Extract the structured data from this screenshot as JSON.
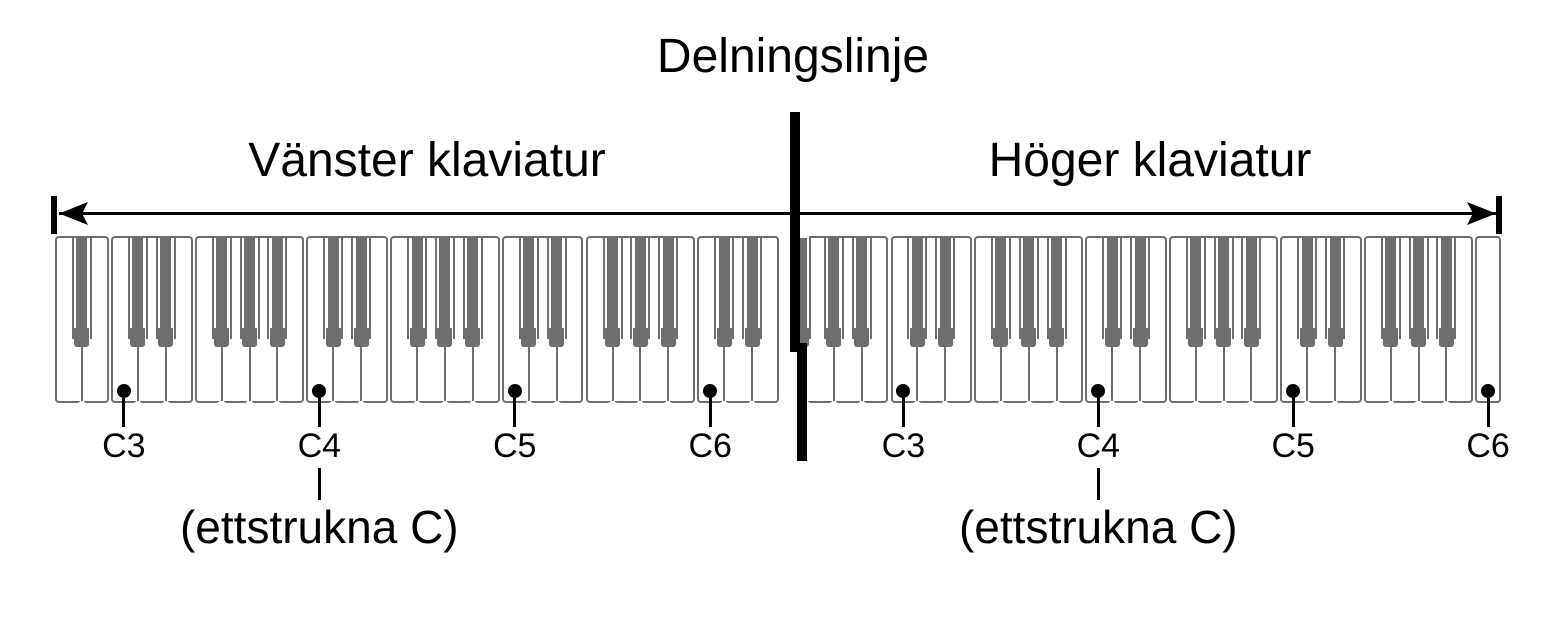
{
  "colors": {
    "ink": "#000000",
    "key_gray": "#6e6e6e",
    "background": "#ffffff"
  },
  "divider": {
    "label": "Delningslinje"
  },
  "keyboards": [
    {
      "label": "Vänster klaviatur",
      "white_keys": [
        "A2",
        "B2",
        "C3",
        "D3",
        "E3",
        "F3",
        "G3",
        "A3",
        "B3",
        "C4",
        "D4",
        "E4",
        "F4",
        "G4",
        "A4",
        "B4",
        "C5",
        "D5",
        "E5",
        "F5",
        "G5",
        "A5",
        "B5",
        "C6",
        "D6",
        "E6"
      ],
      "black_after_indices": [
        0,
        2,
        3,
        5,
        6,
        7,
        9,
        10,
        12,
        13,
        14,
        16,
        17,
        19,
        20,
        21,
        23,
        24
      ],
      "partial_black_at_start": false,
      "marks": [
        {
          "label": "C3",
          "white_index": 2
        },
        {
          "label": "C4",
          "white_index": 9
        },
        {
          "label": "C5",
          "white_index": 16
        },
        {
          "label": "C6",
          "white_index": 23
        }
      ],
      "callout": {
        "text": "(ettstrukna C)",
        "mark_label": "C4"
      }
    },
    {
      "label": "Höger klaviatur",
      "white_keys": [
        "G2",
        "A2",
        "B2",
        "C3",
        "D3",
        "E3",
        "F3",
        "G3",
        "A3",
        "B3",
        "C4",
        "D4",
        "E4",
        "F4",
        "G4",
        "A4",
        "B4",
        "C5",
        "D5",
        "E5",
        "F5",
        "G5",
        "A5",
        "B5",
        "C6"
      ],
      "black_after_indices": [
        0,
        1,
        3,
        4,
        6,
        7,
        8,
        10,
        11,
        13,
        14,
        15,
        17,
        18,
        20,
        21,
        22
      ],
      "partial_black_at_start": true,
      "marks": [
        {
          "label": "C3",
          "white_index": 3
        },
        {
          "label": "C4",
          "white_index": 10
        },
        {
          "label": "C5",
          "white_index": 17
        },
        {
          "label": "C6",
          "white_index": 24
        }
      ],
      "callout": {
        "text": "(ettstrukna C)",
        "mark_label": "C4"
      }
    }
  ]
}
